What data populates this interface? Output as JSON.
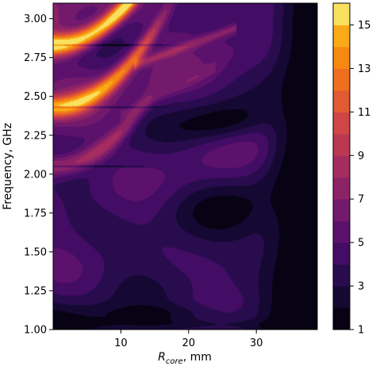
{
  "chart_data": {
    "type": "heatmap",
    "subtype": "filled-contour",
    "colormap": "inferno",
    "x": {
      "label_main": "R",
      "label_sub": "core",
      "label_rest": ", mm",
      "range": [
        0,
        39
      ],
      "ticks": [
        10,
        20,
        30
      ],
      "tick_labels": [
        "10",
        "20",
        "30"
      ]
    },
    "y": {
      "label": "Frequency, GHz",
      "range": [
        1.0,
        3.1
      ],
      "ticks": [
        1.0,
        1.25,
        1.5,
        1.75,
        2.0,
        2.25,
        2.5,
        2.75,
        3.0
      ],
      "tick_labels": [
        "1.00",
        "1.25",
        "1.50",
        "1.75",
        "2.00",
        "2.25",
        "2.50",
        "2.75",
        "3.00"
      ]
    },
    "colorbar": {
      "range": [
        1,
        16
      ],
      "ticks": [
        1,
        3,
        5,
        7,
        9,
        11,
        13,
        15
      ],
      "tick_labels": [
        "1",
        "3",
        "5",
        "7",
        "9",
        "11",
        "13",
        "15"
      ],
      "levels": [
        1,
        2,
        3,
        4,
        5,
        6,
        7,
        8,
        9,
        10,
        11,
        12,
        13,
        14,
        15,
        16
      ]
    },
    "features": [
      {
        "name": "resonance band",
        "y": 2.83,
        "x_range": [
          0,
          17
        ],
        "peak_value": 15.5
      },
      {
        "name": "resonance band",
        "y": 2.43,
        "x_range": [
          0,
          15
        ],
        "peak_value": 13
      },
      {
        "name": "resonance band",
        "y": 2.05,
        "x_range": [
          0,
          13
        ],
        "peak_value": 9
      },
      {
        "name": "local minimum",
        "x": 25.5,
        "y": 2.33,
        "value": 1.5
      },
      {
        "name": "low region",
        "x_range": [
          33,
          39
        ],
        "y_range": [
          1.0,
          3.1
        ],
        "value": 1.2
      }
    ],
    "grid": false,
    "legend": "colorbar-right"
  }
}
